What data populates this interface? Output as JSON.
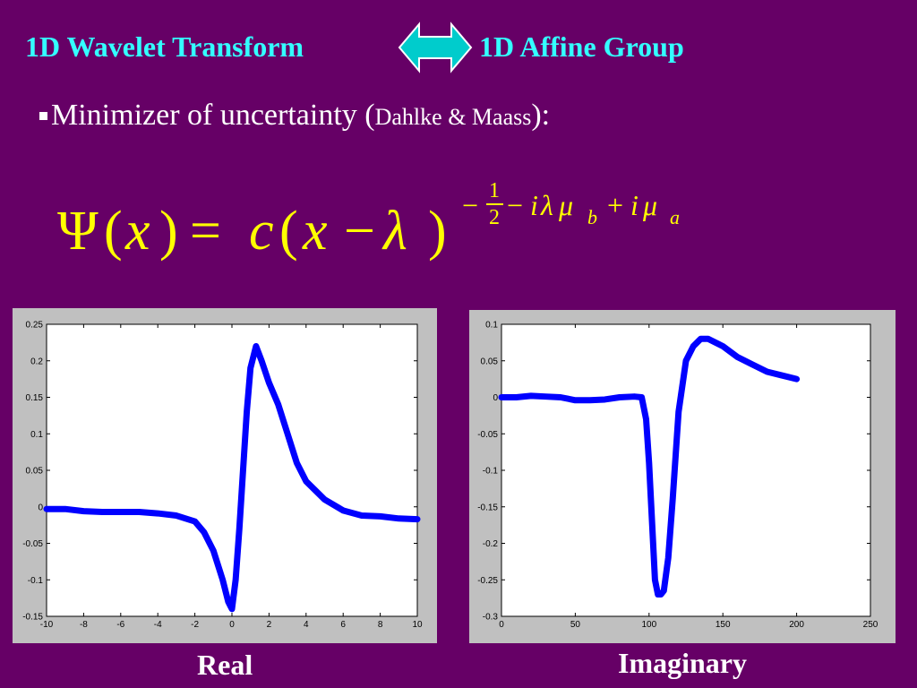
{
  "header": {
    "title_left": "1D Wavelet Transform",
    "title_right": "1D Affine Group",
    "arrow_icon": "double-headed-arrow",
    "arrow_fill": "#00cccc"
  },
  "bullet": {
    "text": "Minimizer of uncertainty (",
    "cite": "Dahlke & Maass",
    "close": "):"
  },
  "formula": {
    "lhs_psi": "Ψ",
    "open1": "(",
    "x1": "x",
    "close1": ")",
    "equals": "=",
    "c": "c",
    "open2": "(",
    "x2": "x",
    "minus": "−",
    "lambda": "λ",
    "close2": ")",
    "exp_minus": "−",
    "exp_num": "1",
    "exp_den": "2",
    "exp_minus2": "−",
    "exp_i1": "i",
    "exp_lambda": "λ",
    "exp_mu1": "μ",
    "exp_b": "b",
    "exp_plus": "+",
    "exp_i2": "i",
    "exp_mu2": "μ",
    "exp_a": "a",
    "color": "#ffff00"
  },
  "captions": {
    "real": "Real",
    "imaginary": "Imaginary"
  },
  "chart_data": [
    {
      "type": "line",
      "title": "",
      "xlabel": "",
      "ylabel": "",
      "xlim": [
        -10,
        10
      ],
      "ylim": [
        -0.15,
        0.25
      ],
      "grid": false,
      "line_color": "#0000ff",
      "xticks": [
        -10,
        -8,
        -6,
        -4,
        -2,
        0,
        2,
        4,
        6,
        8,
        10
      ],
      "yticks": [
        -0.15,
        -0.1,
        -0.05,
        0,
        0.05,
        0.1,
        0.15,
        0.2,
        0.25
      ],
      "xtick_labels": [
        "-10",
        "-8",
        "-6",
        "-4",
        "-2",
        "0",
        "2",
        "4",
        "6",
        "8",
        "10"
      ],
      "ytick_labels": [
        "-0.15",
        "-0.1",
        "-0.05",
        "0",
        "0.05",
        "0.1",
        "0.15",
        "0.2",
        "0.25"
      ],
      "series": [
        {
          "x": [
            -10,
            -9,
            -8,
            -7,
            -6,
            -5,
            -4,
            -3,
            -2,
            -1.5,
            -1,
            -0.5,
            -0.2,
            0,
            0.2,
            0.4,
            0.6,
            0.8,
            1,
            1.3,
            1.6,
            2,
            2.5,
            3,
            3.5,
            4,
            5,
            6,
            7,
            8,
            9,
            10
          ],
          "y": [
            -0.003,
            -0.003,
            -0.006,
            -0.007,
            -0.007,
            -0.007,
            -0.009,
            -0.012,
            -0.02,
            -0.035,
            -0.06,
            -0.1,
            -0.13,
            -0.14,
            -0.1,
            -0.03,
            0.05,
            0.13,
            0.19,
            0.22,
            0.2,
            0.17,
            0.14,
            0.1,
            0.06,
            0.035,
            0.01,
            -0.005,
            -0.012,
            -0.013,
            -0.016,
            -0.017
          ]
        }
      ]
    },
    {
      "type": "line",
      "title": "",
      "xlabel": "",
      "ylabel": "",
      "xlim": [
        0,
        250
      ],
      "ylim": [
        -0.3,
        0.1
      ],
      "grid": false,
      "line_color": "#0000ff",
      "xticks": [
        0,
        50,
        100,
        150,
        200,
        250
      ],
      "yticks": [
        -0.3,
        -0.25,
        -0.2,
        -0.15,
        -0.1,
        -0.05,
        0,
        0.05,
        0.1
      ],
      "xtick_labels": [
        "0",
        "50",
        "100",
        "150",
        "200",
        "250"
      ],
      "ytick_labels": [
        "-0.3",
        "-0.25",
        "-0.2",
        "-0.15",
        "-0.1",
        "-0.05",
        "0",
        "0.05",
        "0.1"
      ],
      "series": [
        {
          "x": [
            0,
            10,
            20,
            30,
            40,
            50,
            60,
            70,
            80,
            90,
            95,
            98,
            100,
            102,
            104,
            106,
            108,
            110,
            113,
            116,
            120,
            125,
            130,
            135,
            140,
            150,
            160,
            170,
            180,
            190,
            200
          ],
          "y": [
            0,
            0,
            0.002,
            0.001,
            0,
            -0.004,
            -0.004,
            -0.003,
            0,
            0.001,
            0,
            -0.03,
            -0.09,
            -0.17,
            -0.25,
            -0.27,
            -0.27,
            -0.265,
            -0.22,
            -0.14,
            -0.02,
            0.05,
            0.07,
            0.08,
            0.08,
            0.07,
            0.055,
            0.045,
            0.035,
            0.03,
            0.025
          ]
        }
      ]
    }
  ]
}
